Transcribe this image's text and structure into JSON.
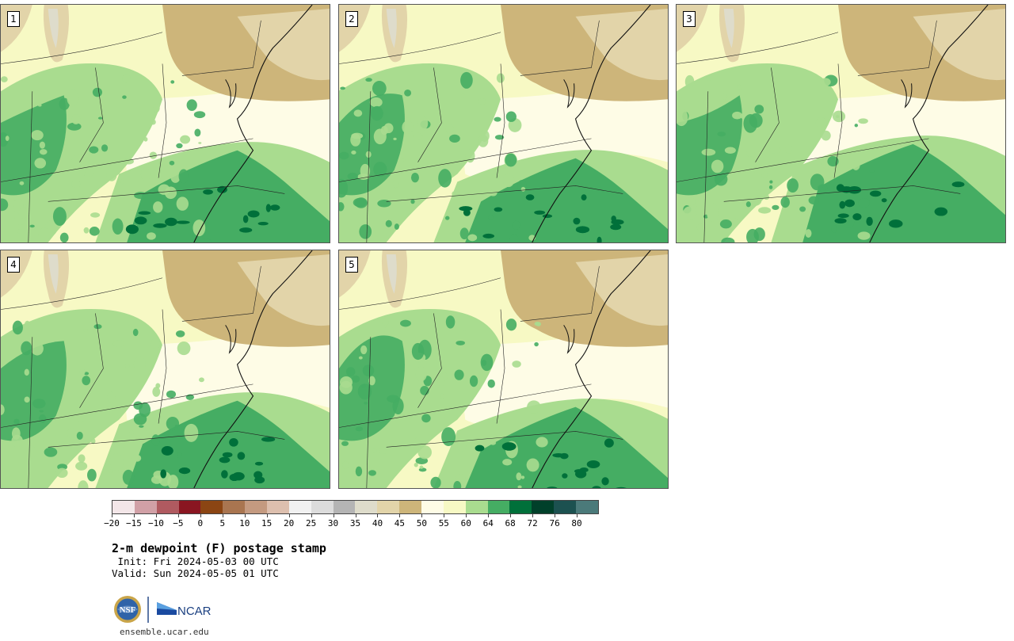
{
  "panels": [
    {
      "label": "1"
    },
    {
      "label": "2"
    },
    {
      "label": "3"
    },
    {
      "label": "4"
    },
    {
      "label": "5"
    }
  ],
  "colorbar": {
    "colors": [
      "#f3e6e8",
      "#d1a0a6",
      "#b05a60",
      "#8a1621",
      "#8b4513",
      "#a97550",
      "#c49a80",
      "#ddbfae",
      "#f1f1f1",
      "#dcdcdc",
      "#b4b4b4",
      "#dedccb",
      "#e2d4a9",
      "#cdb57a",
      "#fefce6",
      "#f7f9c4",
      "#a9dc8f",
      "#45ad63",
      "#00703a",
      "#00402a",
      "#1c5150",
      "#4b7a7a"
    ],
    "tick_labels": [
      "−20",
      "−15",
      "−10",
      "−5",
      "0",
      "5",
      "10",
      "15",
      "20",
      "25",
      "30",
      "35",
      "40",
      "45",
      "50",
      "55",
      "60",
      "64",
      "68",
      "72",
      "76",
      "80"
    ]
  },
  "title": "2-m dewpoint (F) postage stamp",
  "init": " Init: Fri 2024-05-03 00 UTC",
  "valid": "Valid: Sun 2024-05-05 01 UTC",
  "logos": {
    "nsf": "NSF",
    "ncar": "NCAR"
  },
  "url": "ensemble.ucar.edu"
}
